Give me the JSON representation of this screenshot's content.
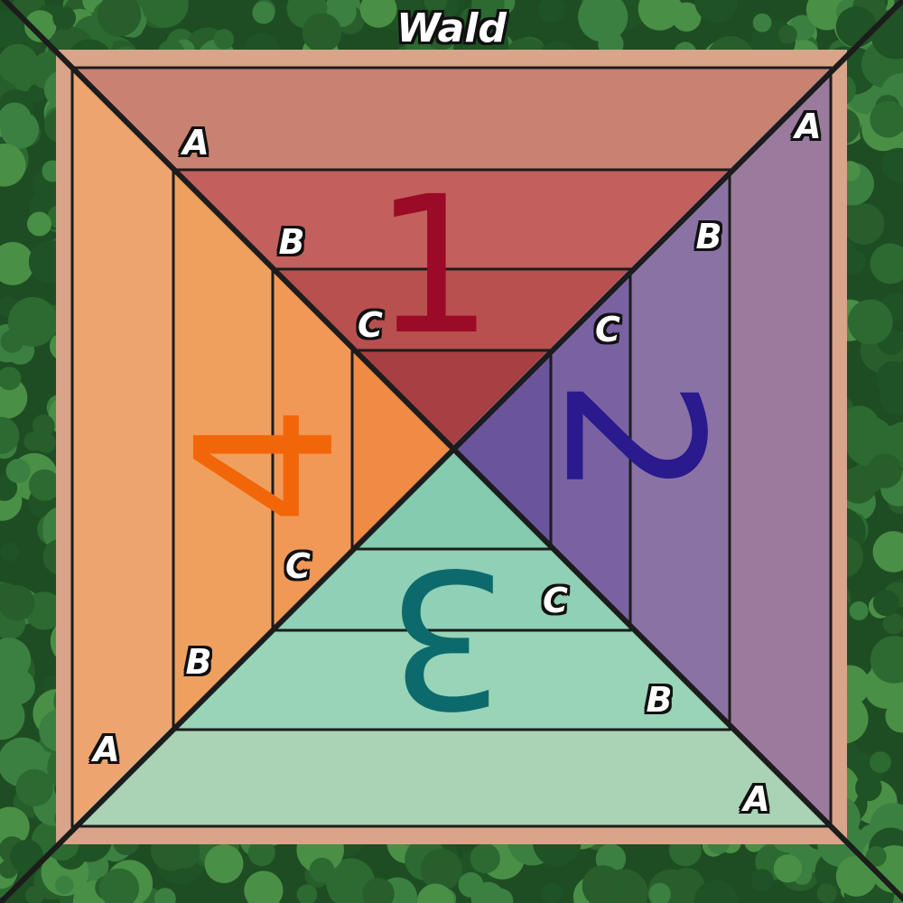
{
  "board": {
    "forest_label": "Wald",
    "ring_labels": {
      "outer": "A",
      "middle": "B",
      "inner": "C"
    },
    "zones": [
      {
        "id": "top",
        "number": "1",
        "number_color": "#9b0a26",
        "fill": "#c4605a"
      },
      {
        "id": "right",
        "number": "2",
        "number_color": "#2a1a8e",
        "fill": "#8c72a6"
      },
      {
        "id": "bottom",
        "number": "3",
        "number_color": "#0c6a6c",
        "fill": "#8fd1b4"
      },
      {
        "id": "left",
        "number": "4",
        "number_color": "#f2660a",
        "fill": "#f0a062"
      }
    ],
    "forest_color": "#245a2b",
    "line_color": "#1c1c1c"
  }
}
